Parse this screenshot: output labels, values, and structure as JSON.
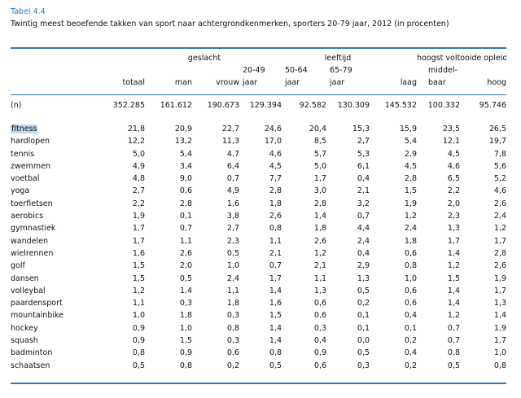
{
  "caption": {
    "label": "Tabel 4.4",
    "title": "Twintig meest beoefende takken van sport naar achtergrondkenmerken, sporters 20-79 jaar, 2012 (in procenten)"
  },
  "colors": {
    "accent": "#2a78b8",
    "highlight": "#bcd9f0"
  },
  "header": {
    "group_geslacht": "geslacht",
    "group_leeftijd": "leeftijd",
    "group_opleiding": "hoogst voltooide opleiding",
    "age1_top": "20-49",
    "age2_top": "50-64",
    "age3_top": "65-79",
    "edu_mid_top": "middel-",
    "col_totaal": "totaal",
    "col_man": "man",
    "col_vrouw": "vrouw",
    "col_age1": "jaar",
    "col_age2": "jaar",
    "col_age3": "jaar",
    "col_laag": "laag",
    "col_middelbaar": "baar",
    "col_hoog": "hoog"
  },
  "n_row": {
    "label": "(n)",
    "values": [
      "352.285",
      "161.612",
      "190.673",
      "129.394",
      "92.582",
      "130.309",
      "145.532",
      "100.332",
      "95.746"
    ]
  },
  "rows": [
    {
      "sport": "fitness",
      "values": [
        "21,8",
        "20,9",
        "22,7",
        "24,6",
        "20,4",
        "15,3",
        "15,9",
        "23,5",
        "26,5"
      ]
    },
    {
      "sport": "hardlopen",
      "values": [
        "12,2",
        "13,2",
        "11,3",
        "17,0",
        "8,5",
        "2,7",
        "5,4",
        "12,1",
        "19,7"
      ]
    },
    {
      "sport": "tennis",
      "values": [
        "5,0",
        "5,4",
        "4,7",
        "4,6",
        "5,7",
        "5,3",
        "2,9",
        "4,5",
        "7,8"
      ]
    },
    {
      "sport": "zwemmen",
      "values": [
        "4,9",
        "3,4",
        "6,4",
        "4,5",
        "5,0",
        "6,1",
        "4,5",
        "4,6",
        "5,6"
      ]
    },
    {
      "sport": "voetbal",
      "values": [
        "4,8",
        "9,0",
        "0,7",
        "7,7",
        "1,7",
        "0,4",
        "2,8",
        "6,5",
        "5,2"
      ]
    },
    {
      "sport": "yoga",
      "values": [
        "2,7",
        "0,6",
        "4,9",
        "2,8",
        "3,0",
        "2,1",
        "1,5",
        "2,2",
        "4,6"
      ]
    },
    {
      "sport": "toerfietsen",
      "values": [
        "2,2",
        "2,8",
        "1,6",
        "1,8",
        "2,8",
        "3,2",
        "1,9",
        "2,0",
        "2,6"
      ]
    },
    {
      "sport": "aerobics",
      "values": [
        "1,9",
        "0,1",
        "3,8",
        "2,6",
        "1,4",
        "0,7",
        "1,2",
        "2,3",
        "2,4"
      ]
    },
    {
      "sport": "gymnastiek",
      "values": [
        "1,7",
        "0,7",
        "2,7",
        "0,8",
        "1,8",
        "4,4",
        "2,4",
        "1,3",
        "1,2"
      ]
    },
    {
      "sport": "wandelen",
      "values": [
        "1,7",
        "1,1",
        "2,3",
        "1,1",
        "2,6",
        "2,4",
        "1,8",
        "1,7",
        "1,7"
      ]
    },
    {
      "sport": "wielrennen",
      "values": [
        "1,6",
        "2,6",
        "0,5",
        "2,1",
        "1,2",
        "0,4",
        "0,6",
        "1,4",
        "2,8"
      ]
    },
    {
      "sport": "golf",
      "values": [
        "1,5",
        "2,0",
        "1,0",
        "0,7",
        "2,1",
        "2,9",
        "0,8",
        "1,2",
        "2,6"
      ]
    },
    {
      "sport": "dansen",
      "values": [
        "1,5",
        "0,5",
        "2,4",
        "1,7",
        "1,1",
        "1,3",
        "1,0",
        "1,5",
        "1,9"
      ]
    },
    {
      "sport": "volleybal",
      "values": [
        "1,2",
        "1,4",
        "1,1",
        "1,4",
        "1,3",
        "0,5",
        "0,6",
        "1,4",
        "1,7"
      ]
    },
    {
      "sport": "paardensport",
      "values": [
        "1,1",
        "0,3",
        "1,8",
        "1,6",
        "0,6",
        "0,2",
        "0,6",
        "1,4",
        "1,3"
      ]
    },
    {
      "sport": "mountainbike",
      "values": [
        "1,0",
        "1,8",
        "0,3",
        "1,5",
        "0,6",
        "0,1",
        "0,4",
        "1,2",
        "1,4"
      ]
    },
    {
      "sport": "hockey",
      "values": [
        "0,9",
        "1,0",
        "0,8",
        "1,4",
        "0,3",
        "0,1",
        "0,1",
        "0,7",
        "1,9"
      ]
    },
    {
      "sport": "squash",
      "values": [
        "0,9",
        "1,5",
        "0,3",
        "1,4",
        "0,4",
        "0,0",
        "0,2",
        "0,7",
        "1,7"
      ]
    },
    {
      "sport": "badminton",
      "values": [
        "0,8",
        "0,9",
        "0,6",
        "0,8",
        "0,9",
        "0,5",
        "0,4",
        "0,8",
        "1,0"
      ]
    },
    {
      "sport": "schaatsen",
      "values": [
        "0,5",
        "0,8",
        "0,2",
        "0,5",
        "0,6",
        "0,3",
        "0,2",
        "0,5",
        "0,8"
      ]
    }
  ]
}
